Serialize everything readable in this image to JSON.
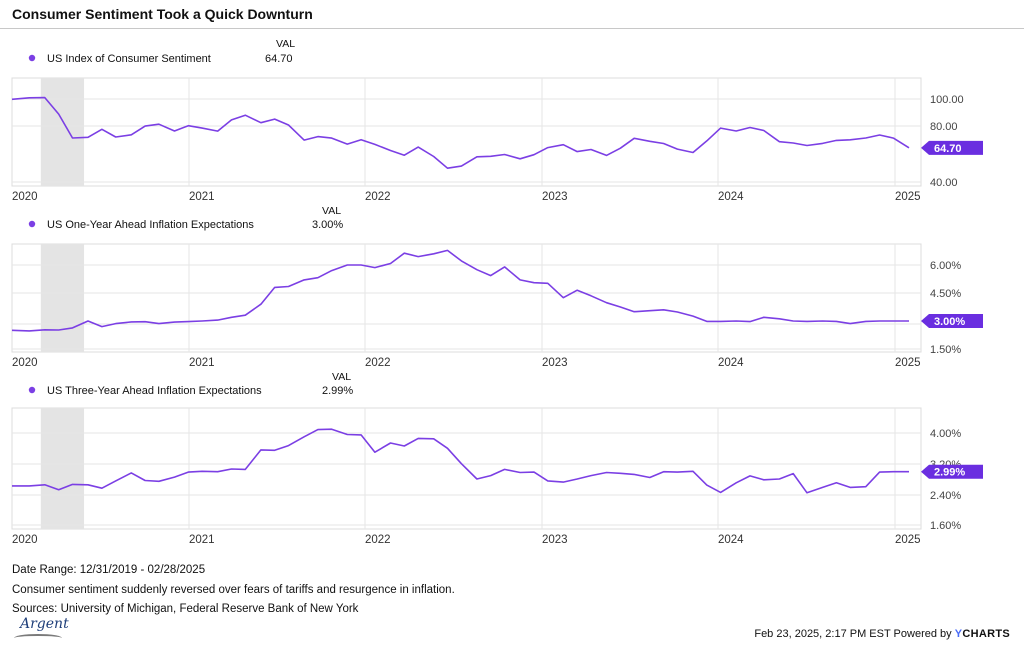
{
  "title": "Consumer Sentiment Took a Quick Downturn",
  "footer": {
    "date_range": "Date Range: 12/31/2019 - 02/28/2025",
    "note": "Consumer sentiment suddenly reversed over fears of tariffs and resurgence in inflation.",
    "sources": "Sources: University of Michigan, Federal Reserve Bank of New York",
    "brand_text": "Argent",
    "timestamp": "Feb 23, 2025, 2:17 PM EST Powered by",
    "powered_brand": "CHARTS",
    "powered_brand_prefix": "Y"
  },
  "colors": {
    "line": "#7b3fe4",
    "badge": "#6a2ee0",
    "recession": "#e4e4e4",
    "grid": "#e6e6e6"
  },
  "chart_data": [
    {
      "type": "line",
      "legend_header": "VAL",
      "series": [
        {
          "name": "US Index of Consumer Sentiment",
          "value_label": "64.70"
        }
      ],
      "x_labels": [
        "2020",
        "2021",
        "2022",
        "2023",
        "2024",
        "2025"
      ],
      "y_ticks": [
        "100.00",
        "80.00",
        "40.00"
      ],
      "ylim": [
        40,
        110
      ],
      "last_value_badge": "64.70",
      "recession_band": [
        2020.17,
        2020.42
      ],
      "points": [
        [
          2019.98,
          99.8
        ],
        [
          2020.08,
          100.9
        ],
        [
          2020.17,
          101.0
        ],
        [
          2020.25,
          89.1
        ],
        [
          2020.33,
          71.8
        ],
        [
          2020.42,
          72.3
        ],
        [
          2020.5,
          78.1
        ],
        [
          2020.58,
          72.5
        ],
        [
          2020.67,
          74.1
        ],
        [
          2020.75,
          80.4
        ],
        [
          2020.83,
          81.8
        ],
        [
          2020.92,
          76.9
        ],
        [
          2021.0,
          80.7
        ],
        [
          2021.08,
          79.0
        ],
        [
          2021.17,
          76.8
        ],
        [
          2021.25,
          84.9
        ],
        [
          2021.33,
          88.3
        ],
        [
          2021.42,
          82.9
        ],
        [
          2021.5,
          85.5
        ],
        [
          2021.58,
          81.2
        ],
        [
          2021.67,
          70.3
        ],
        [
          2021.75,
          72.8
        ],
        [
          2021.83,
          71.7
        ],
        [
          2021.92,
          67.4
        ],
        [
          2022.0,
          70.6
        ],
        [
          2022.08,
          67.2
        ],
        [
          2022.17,
          62.8
        ],
        [
          2022.25,
          59.4
        ],
        [
          2022.33,
          65.2
        ],
        [
          2022.42,
          58.4
        ],
        [
          2022.5,
          50.0
        ],
        [
          2022.58,
          51.5
        ],
        [
          2022.67,
          58.2
        ],
        [
          2022.75,
          58.6
        ],
        [
          2022.83,
          59.9
        ],
        [
          2022.92,
          56.8
        ],
        [
          2023.0,
          59.7
        ],
        [
          2023.08,
          64.9
        ],
        [
          2023.17,
          67.0
        ],
        [
          2023.25,
          62.0
        ],
        [
          2023.33,
          63.5
        ],
        [
          2023.42,
          59.2
        ],
        [
          2023.5,
          64.4
        ],
        [
          2023.58,
          71.6
        ],
        [
          2023.67,
          69.4
        ],
        [
          2023.75,
          67.8
        ],
        [
          2023.83,
          63.8
        ],
        [
          2023.92,
          61.3
        ],
        [
          2024.0,
          69.7
        ],
        [
          2024.08,
          79.0
        ],
        [
          2024.17,
          76.9
        ],
        [
          2024.25,
          79.4
        ],
        [
          2024.33,
          77.2
        ],
        [
          2024.42,
          69.1
        ],
        [
          2024.5,
          68.2
        ],
        [
          2024.58,
          66.4
        ],
        [
          2024.67,
          67.9
        ],
        [
          2024.75,
          70.1
        ],
        [
          2024.83,
          70.5
        ],
        [
          2024.92,
          71.8
        ],
        [
          2025.0,
          74.0
        ],
        [
          2025.08,
          71.7
        ],
        [
          2025.17,
          64.7
        ]
      ]
    },
    {
      "type": "line",
      "legend_header": "VAL",
      "series": [
        {
          "name": "US One-Year Ahead Inflation Expectations",
          "value_label": "3.00%"
        }
      ],
      "x_labels": [
        "2020",
        "2021",
        "2022",
        "2023",
        "2024",
        "2025"
      ],
      "y_ticks": [
        "6.00%",
        "4.50%",
        "3.00%",
        "1.50%"
      ],
      "ylim": [
        1.5,
        6.8
      ],
      "last_value_badge": "3.00%",
      "recession_band": [
        2020.17,
        2020.42
      ],
      "points": [
        [
          2019.98,
          2.5
        ],
        [
          2020.08,
          2.47
        ],
        [
          2020.17,
          2.53
        ],
        [
          2020.25,
          2.52
        ],
        [
          2020.33,
          2.63
        ],
        [
          2020.42,
          3.0
        ],
        [
          2020.5,
          2.7
        ],
        [
          2020.58,
          2.86
        ],
        [
          2020.67,
          2.95
        ],
        [
          2020.75,
          2.96
        ],
        [
          2020.83,
          2.86
        ],
        [
          2020.92,
          2.94
        ],
        [
          2021.0,
          2.97
        ],
        [
          2021.08,
          3.0
        ],
        [
          2021.17,
          3.05
        ],
        [
          2021.25,
          3.2
        ],
        [
          2021.33,
          3.31
        ],
        [
          2021.42,
          3.9
        ],
        [
          2021.5,
          4.8
        ],
        [
          2021.58,
          4.85
        ],
        [
          2021.67,
          5.2
        ],
        [
          2021.75,
          5.32
        ],
        [
          2021.83,
          5.7
        ],
        [
          2021.92,
          6.0
        ],
        [
          2022.0,
          6.0
        ],
        [
          2022.08,
          5.86
        ],
        [
          2022.17,
          6.08
        ],
        [
          2022.25,
          6.63
        ],
        [
          2022.33,
          6.45
        ],
        [
          2022.42,
          6.6
        ],
        [
          2022.5,
          6.78
        ],
        [
          2022.58,
          6.22
        ],
        [
          2022.67,
          5.75
        ],
        [
          2022.75,
          5.43
        ],
        [
          2022.83,
          5.9
        ],
        [
          2022.92,
          5.2
        ],
        [
          2023.0,
          5.05
        ],
        [
          2023.08,
          5.02
        ],
        [
          2023.17,
          4.25
        ],
        [
          2023.25,
          4.65
        ],
        [
          2023.33,
          4.35
        ],
        [
          2023.42,
          3.98
        ],
        [
          2023.5,
          3.75
        ],
        [
          2023.58,
          3.5
        ],
        [
          2023.67,
          3.55
        ],
        [
          2023.75,
          3.6
        ],
        [
          2023.83,
          3.48
        ],
        [
          2023.92,
          3.26
        ],
        [
          2024.0,
          2.98
        ],
        [
          2024.08,
          2.98
        ],
        [
          2024.17,
          3.0
        ],
        [
          2024.25,
          2.97
        ],
        [
          2024.33,
          3.2
        ],
        [
          2024.42,
          3.12
        ],
        [
          2024.5,
          3.0
        ],
        [
          2024.58,
          2.98
        ],
        [
          2024.67,
          3.0
        ],
        [
          2024.75,
          2.98
        ],
        [
          2024.83,
          2.86
        ],
        [
          2024.92,
          2.98
        ],
        [
          2025.0,
          3.0
        ],
        [
          2025.08,
          3.0
        ],
        [
          2025.17,
          3.0
        ]
      ]
    },
    {
      "type": "line",
      "legend_header": "VAL",
      "series": [
        {
          "name": "US Three-Year Ahead Inflation Expectations",
          "value_label": "2.99%"
        }
      ],
      "x_labels": [
        "2020",
        "2021",
        "2022",
        "2023",
        "2024",
        "2025"
      ],
      "y_ticks": [
        "4.00%",
        "3.20%",
        "2.40%",
        "1.60%"
      ],
      "ylim": [
        1.6,
        4.4
      ],
      "last_value_badge": "2.99%",
      "recession_band": [
        2020.17,
        2020.42
      ],
      "points": [
        [
          2019.98,
          2.62
        ],
        [
          2020.08,
          2.62
        ],
        [
          2020.17,
          2.65
        ],
        [
          2020.25,
          2.52
        ],
        [
          2020.33,
          2.66
        ],
        [
          2020.42,
          2.65
        ],
        [
          2020.5,
          2.56
        ],
        [
          2020.58,
          2.75
        ],
        [
          2020.67,
          2.96
        ],
        [
          2020.75,
          2.76
        ],
        [
          2020.83,
          2.74
        ],
        [
          2020.92,
          2.85
        ],
        [
          2021.0,
          2.98
        ],
        [
          2021.08,
          3.0
        ],
        [
          2021.17,
          2.99
        ],
        [
          2021.25,
          3.06
        ],
        [
          2021.33,
          3.05
        ],
        [
          2021.42,
          3.56
        ],
        [
          2021.5,
          3.55
        ],
        [
          2021.58,
          3.67
        ],
        [
          2021.67,
          3.9
        ],
        [
          2021.75,
          4.09
        ],
        [
          2021.83,
          4.1
        ],
        [
          2021.92,
          3.96
        ],
        [
          2022.0,
          3.95
        ],
        [
          2022.08,
          3.5
        ],
        [
          2022.17,
          3.74
        ],
        [
          2022.25,
          3.66
        ],
        [
          2022.33,
          3.86
        ],
        [
          2022.42,
          3.85
        ],
        [
          2022.5,
          3.6
        ],
        [
          2022.58,
          3.2
        ],
        [
          2022.67,
          2.8
        ],
        [
          2022.75,
          2.89
        ],
        [
          2022.83,
          3.05
        ],
        [
          2022.92,
          2.97
        ],
        [
          2023.0,
          2.98
        ],
        [
          2023.08,
          2.75
        ],
        [
          2023.17,
          2.72
        ],
        [
          2023.25,
          2.8
        ],
        [
          2023.33,
          2.89
        ],
        [
          2023.42,
          2.97
        ],
        [
          2023.5,
          2.95
        ],
        [
          2023.58,
          2.92
        ],
        [
          2023.67,
          2.84
        ],
        [
          2023.75,
          2.99
        ],
        [
          2023.83,
          2.98
        ],
        [
          2023.92,
          3.0
        ],
        [
          2024.0,
          2.64
        ],
        [
          2024.08,
          2.45
        ],
        [
          2024.17,
          2.7
        ],
        [
          2024.25,
          2.88
        ],
        [
          2024.33,
          2.78
        ],
        [
          2024.42,
          2.8
        ],
        [
          2024.5,
          2.94
        ],
        [
          2024.58,
          2.44
        ],
        [
          2024.67,
          2.58
        ],
        [
          2024.75,
          2.7
        ],
        [
          2024.83,
          2.58
        ],
        [
          2024.92,
          2.6
        ],
        [
          2025.0,
          2.98
        ],
        [
          2025.08,
          2.99
        ],
        [
          2025.17,
          2.99
        ]
      ]
    }
  ]
}
